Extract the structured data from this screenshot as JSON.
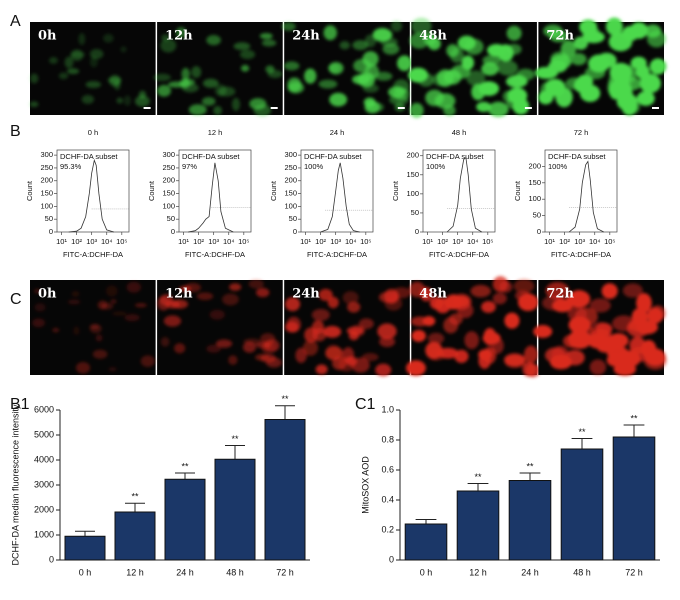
{
  "figure": {
    "panel_a": {
      "label": "A",
      "color": "#4cd94c",
      "images": [
        "0h",
        "12h",
        "24h",
        "48h",
        "72h"
      ]
    },
    "panel_b": {
      "label": "B"
    },
    "panel_c": {
      "label": "C",
      "color": "#d92a1e",
      "images": [
        "0h",
        "12h",
        "24h",
        "48h",
        "72h"
      ]
    }
  },
  "chart_data": [
    {
      "type": "line",
      "title": "0 h",
      "annotation": "DCHF-DA subset",
      "percent": "95.3%",
      "xlabel": "FITC-A:DCHF-DA",
      "ylabel": "Count",
      "xscale": "log",
      "color": "#333333",
      "x": [
        30,
        100,
        200,
        400,
        700,
        1000,
        1500,
        2000,
        3000,
        5000,
        10000,
        30000
      ],
      "values": [
        0,
        3,
        15,
        60,
        150,
        230,
        280,
        260,
        150,
        50,
        8,
        0
      ],
      "gate": {
        "x": [
          1000,
          300000
        ],
        "y": 90
      },
      "xlim": [
        5,
        300000
      ],
      "xticks": [
        {
          "value": 10,
          "label": "10¹"
        },
        {
          "value": 100,
          "label": "10²"
        },
        {
          "value": 1000,
          "label": "10³"
        },
        {
          "value": 10000,
          "label": "10⁴"
        },
        {
          "value": 100000,
          "label": "10⁵"
        }
      ],
      "ylim": [
        0,
        320
      ],
      "yticks": [
        0,
        50,
        100,
        150,
        200,
        250,
        300
      ]
    },
    {
      "type": "line",
      "title": "12 h",
      "annotation": "DCHF-DA subset",
      "percent": "97%",
      "xlabel": "FITC-A:DCHF-DA",
      "ylabel": "Count",
      "xscale": "log",
      "color": "#333333",
      "x": [
        20,
        60,
        100,
        200,
        300,
        500,
        800,
        1200,
        2000,
        3000,
        6000,
        20000
      ],
      "values": [
        0,
        5,
        15,
        35,
        50,
        60,
        180,
        270,
        200,
        80,
        15,
        0
      ],
      "gate": {
        "x": [
          700,
          300000
        ],
        "y": 95
      },
      "xlim": [
        5,
        300000
      ],
      "xticks": [
        {
          "value": 10,
          "label": "10¹"
        },
        {
          "value": 100,
          "label": "10²"
        },
        {
          "value": 1000,
          "label": "10³"
        },
        {
          "value": 10000,
          "label": "10⁴"
        },
        {
          "value": 100000,
          "label": "10⁵"
        }
      ],
      "ylim": [
        0,
        320
      ],
      "yticks": [
        0,
        50,
        100,
        150,
        200,
        250,
        300
      ]
    },
    {
      "type": "line",
      "title": "24 h",
      "annotation": "DCHF-DA subset",
      "percent": "100%",
      "xlabel": "FITC-A:DCHF-DA",
      "ylabel": "Count",
      "xscale": "log",
      "color": "#333333",
      "x": [
        100,
        300,
        600,
        1000,
        1500,
        2000,
        3000,
        5000,
        8000,
        15000,
        40000
      ],
      "values": [
        0,
        10,
        60,
        160,
        240,
        270,
        210,
        100,
        30,
        5,
        0
      ],
      "gate": {
        "x": [
          200,
          300000
        ],
        "y": 85
      },
      "xlim": [
        5,
        300000
      ],
      "xticks": [
        {
          "value": 10,
          "label": "10¹"
        },
        {
          "value": 100,
          "label": "10²"
        },
        {
          "value": 1000,
          "label": "10³"
        },
        {
          "value": 10000,
          "label": "10⁴"
        },
        {
          "value": 100000,
          "label": "10⁵"
        }
      ],
      "ylim": [
        0,
        320
      ],
      "yticks": [
        0,
        50,
        100,
        150,
        200,
        250,
        300
      ]
    },
    {
      "type": "line",
      "title": "48 h",
      "annotation": "DCHF-DA subset",
      "percent": "100%",
      "xlabel": "FITC-A:DCHF-DA",
      "ylabel": "Count",
      "xscale": "log",
      "color": "#333333",
      "x": [
        200,
        500,
        1000,
        1500,
        2500,
        3500,
        5000,
        8000,
        15000,
        40000
      ],
      "values": [
        0,
        15,
        70,
        140,
        190,
        195,
        150,
        60,
        10,
        0
      ],
      "gate": {
        "x": [
          200,
          300000
        ],
        "y": 62
      },
      "xlim": [
        5,
        300000
      ],
      "xticks": [
        {
          "value": 10,
          "label": "10¹"
        },
        {
          "value": 100,
          "label": "10²"
        },
        {
          "value": 1000,
          "label": "10³"
        },
        {
          "value": 10000,
          "label": "10⁴"
        },
        {
          "value": 100000,
          "label": "10⁵"
        }
      ],
      "ylim": [
        0,
        215
      ],
      "yticks": [
        0,
        50,
        100,
        150,
        200
      ]
    },
    {
      "type": "line",
      "title": "72 h",
      "annotation": "DCHF-DA subset",
      "percent": "100%",
      "xlabel": "FITC-A:DCHF-DA",
      "ylabel": "Count",
      "xscale": "log",
      "color": "#333333",
      "x": [
        200,
        500,
        1000,
        1500,
        2500,
        3500,
        5000,
        8000,
        15000,
        40000
      ],
      "values": [
        0,
        15,
        70,
        150,
        205,
        215,
        160,
        60,
        10,
        0
      ],
      "gate": {
        "x": [
          200,
          300000
        ],
        "y": 75
      },
      "xlim": [
        5,
        300000
      ],
      "xticks": [
        {
          "value": 10,
          "label": "10¹"
        },
        {
          "value": 100,
          "label": "10²"
        },
        {
          "value": 1000,
          "label": "10³"
        },
        {
          "value": 10000,
          "label": "10⁴"
        },
        {
          "value": 100000,
          "label": "10⁵"
        }
      ],
      "ylim": [
        0,
        250
      ],
      "yticks": [
        0,
        50,
        100,
        150,
        200
      ]
    },
    {
      "type": "bar",
      "panel": "B1",
      "ylabel": "DCHF-DA median fluorescence intensity",
      "color": "#1b3768",
      "categories": [
        "0 h",
        "12 h",
        "24 h",
        "48 h",
        "72 h"
      ],
      "values": [
        950,
        1920,
        3230,
        4030,
        5620
      ],
      "errors": [
        200,
        350,
        250,
        550,
        550
      ],
      "annotations": [
        null,
        "**",
        "**",
        "**",
        "**"
      ],
      "ylim": [
        0,
        6000
      ],
      "yticks": [
        0,
        1000,
        2000,
        3000,
        4000,
        5000,
        6000
      ]
    },
    {
      "type": "bar",
      "panel": "C1",
      "ylabel": "MitoSOX AOD",
      "color": "#1b3768",
      "categories": [
        "0 h",
        "12 h",
        "24 h",
        "48 h",
        "72 h"
      ],
      "values": [
        0.24,
        0.46,
        0.53,
        0.74,
        0.82
      ],
      "errors": [
        0.03,
        0.05,
        0.05,
        0.07,
        0.08
      ],
      "annotations": [
        null,
        "**",
        "**",
        "**",
        "**"
      ],
      "ylim": [
        0,
        1
      ],
      "yticks": [
        0,
        0.2,
        0.4,
        0.6,
        0.8,
        {
          "value": 1,
          "label": "1.0"
        }
      ]
    }
  ]
}
